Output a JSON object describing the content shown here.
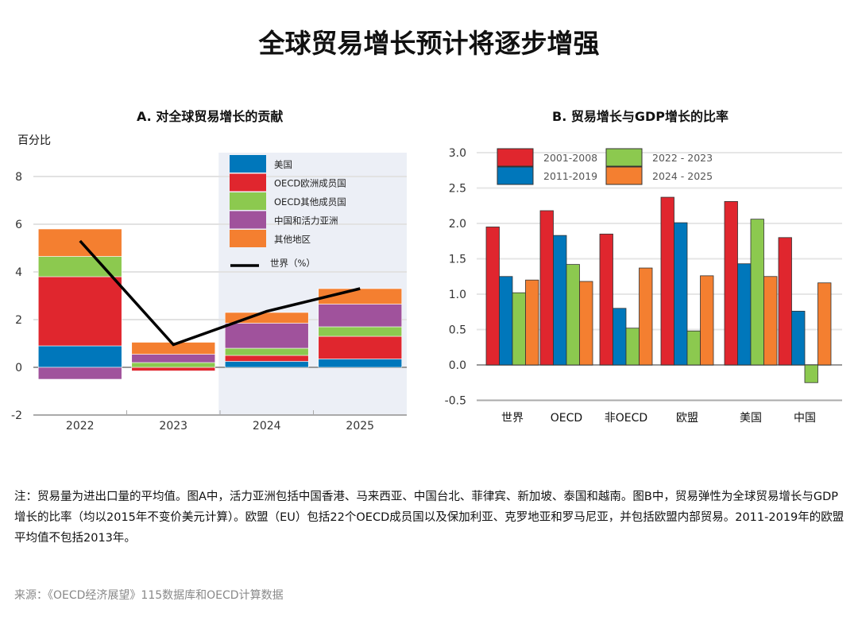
{
  "title": "全球贸易增长预计将逐步增强",
  "note": "注：贸易量为进出口量的平均值。图A中，活力亚洲包括中国香港、马来西亚、中国台北、菲律宾、新加坡、泰国和越南。图B中，贸易弹性为全球贸易增长与GDP增长的比率（均以2015年不变价美元计算）。欧盟（EU）包括22个OECD成员国以及保加利亚、克罗地亚和罗马尼亚，并包括欧盟内部贸易。2011-2019年的欧盟平均值不包括2013年。",
  "source": "来源：《OECD经济展望》115数据库和OECD计算数据",
  "chart_data": [
    {
      "type": "bar",
      "stacked": true,
      "title": "A. 对全球贸易增长的贡献",
      "ylabel": "百分比",
      "ylim": [
        -2,
        8
      ],
      "yticks": [
        -2,
        0,
        2,
        4,
        6,
        8
      ],
      "grid": true,
      "legend": "top-right",
      "shaded_categories": [
        "2024",
        "2025"
      ],
      "categories": [
        "2022",
        "2023",
        "2024",
        "2025"
      ],
      "series": [
        {
          "name": "美国",
          "color": "#0077bb",
          "values": [
            0.9,
            0.0,
            0.25,
            0.35
          ]
        },
        {
          "name": "OECD欧洲成员国",
          "color": "#e0262e",
          "values": [
            2.9,
            -0.15,
            0.25,
            0.95
          ]
        },
        {
          "name": "OECD其他成员国",
          "color": "#8cc94f",
          "values": [
            0.85,
            0.2,
            0.3,
            0.4
          ]
        },
        {
          "name": "中国和活力亚洲",
          "color": "#a0529c",
          "values": [
            -0.5,
            0.35,
            1.05,
            0.95
          ]
        },
        {
          "name": "其他地区",
          "color": "#f47f30",
          "values": [
            1.15,
            0.5,
            0.45,
            0.65
          ]
        }
      ],
      "line": {
        "name": "世界（%）",
        "color": "#000000",
        "values": [
          5.3,
          0.95,
          2.35,
          3.3
        ]
      }
    },
    {
      "type": "bar",
      "title": "B. 贸易增长与GDP增长的比率",
      "ylim": [
        -0.5,
        3.0
      ],
      "yticks": [
        "-0.5",
        "0.0",
        "0.5",
        "1.0",
        "1.5",
        "2.0",
        "2.5",
        "3.0"
      ],
      "grid": true,
      "legend": "top-left",
      "categories": [
        "世界",
        "OECD",
        "非OECD",
        "欧盟",
        "美国",
        "中国"
      ],
      "series": [
        {
          "name": "2001-2008",
          "color": "#e0262e",
          "values": [
            1.95,
            2.18,
            1.85,
            2.37,
            2.31,
            1.8
          ]
        },
        {
          "name": "2011-2019",
          "color": "#0077bb",
          "values": [
            1.25,
            1.83,
            0.8,
            2.01,
            1.43,
            0.76
          ]
        },
        {
          "name": "2022 - 2023",
          "color": "#8cc94f",
          "values": [
            1.02,
            1.42,
            0.52,
            0.48,
            2.06,
            -0.25
          ]
        },
        {
          "name": "2024 - 2025",
          "color": "#f47f30",
          "values": [
            1.2,
            1.18,
            1.37,
            1.26,
            1.25,
            1.16
          ]
        }
      ]
    }
  ]
}
